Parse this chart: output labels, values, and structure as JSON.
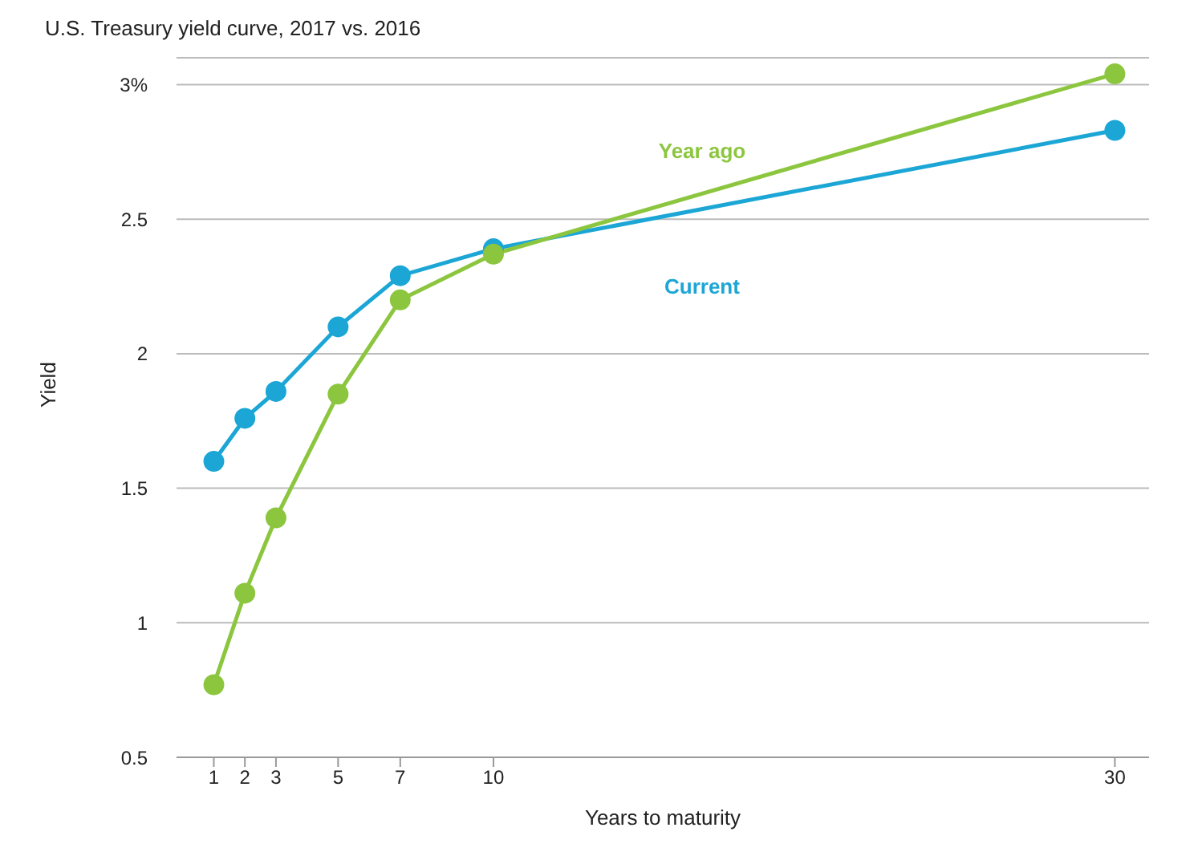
{
  "chart_data": {
    "type": "line",
    "title": "U.S. Treasury yield curve, 2017 vs. 2016",
    "xlabel": "Years to maturity",
    "ylabel": "Yield",
    "x": [
      1,
      2,
      3,
      5,
      7,
      10,
      30
    ],
    "series": [
      {
        "name": "Current",
        "color": "#1ba6d6",
        "values": [
          1.6,
          1.76,
          1.86,
          2.1,
          2.29,
          2.39,
          2.83
        ]
      },
      {
        "name": "Year ago",
        "color": "#8cc63f",
        "values": [
          0.77,
          1.11,
          1.39,
          1.85,
          2.2,
          2.37,
          3.04
        ]
      }
    ],
    "xlim": [
      -0.2,
      31.1
    ],
    "xticks": [
      1,
      2,
      3,
      5,
      7,
      10,
      30
    ],
    "ylim": [
      0.5,
      3.1
    ],
    "yticks": [
      0.5,
      1,
      1.5,
      2,
      {
        "value": 3,
        "label": "3%"
      },
      2.5
    ],
    "grid": "y",
    "marker": "circle",
    "line_style": "solid"
  }
}
